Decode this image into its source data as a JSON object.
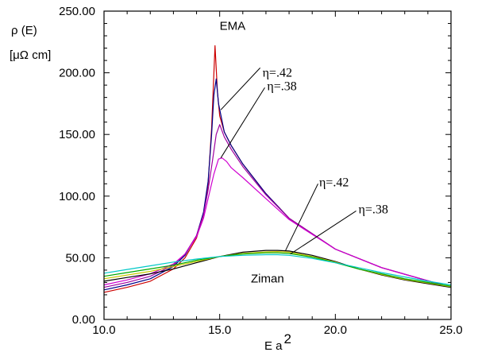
{
  "chart_data": {
    "type": "line",
    "title": "",
    "ylabel": {
      "line1": "ρ (E)",
      "line2": "[μΩ cm]"
    },
    "xlabel": {
      "base": "E a",
      "sup": "2"
    },
    "xlim": [
      10.0,
      25.0
    ],
    "ylim": [
      0.0,
      250.0
    ],
    "xticks": [
      10.0,
      15.0,
      20.0,
      25.0
    ],
    "xtick_labels": [
      "10.0",
      "15.0",
      "20.0",
      "25.0"
    ],
    "yticks": [
      0,
      50,
      100,
      150,
      200,
      250
    ],
    "ytick_labels": [
      "0.00",
      "50.00",
      "100.00",
      "150.00",
      "200.00",
      "250.00"
    ],
    "grid": false,
    "legend": "none",
    "annotations": [
      {
        "id": "ema",
        "text": "EMA",
        "style": "sans",
        "x": 15.0,
        "y": 235
      },
      {
        "id": "ziman",
        "text": "Ziman",
        "style": "sans",
        "x": 16.35,
        "y": 30
      },
      {
        "id": "ema-eta-42",
        "text": "η=.42",
        "style": "serif",
        "x": 16.85,
        "y": 197,
        "line_from": [
          16.75,
          204
        ],
        "line_to": [
          15.05,
          170
        ]
      },
      {
        "id": "ema-eta-38",
        "text": "η=.38",
        "style": "serif",
        "x": 17.05,
        "y": 186,
        "line_from": [
          16.95,
          188
        ],
        "line_to": [
          15.05,
          131
        ]
      },
      {
        "id": "ziman-eta-42",
        "text": "η=.42",
        "style": "serif",
        "x": 19.3,
        "y": 108,
        "line_from": [
          19.25,
          110
        ],
        "line_to": [
          17.85,
          56
        ]
      },
      {
        "id": "ziman-eta-38",
        "text": "η=.38",
        "style": "serif",
        "x": 21.0,
        "y": 86,
        "line_from": [
          20.9,
          88
        ],
        "line_to": [
          18.05,
          53
        ]
      }
    ],
    "series": [
      {
        "color": "#cc0000",
        "x": [
          10.0,
          11.0,
          12.0,
          13.0,
          13.5,
          14.0,
          14.3,
          14.5,
          14.65,
          14.75,
          14.8,
          14.9,
          15.0,
          15.2,
          15.5,
          16.0,
          17.0,
          18.0,
          20.0,
          22.0,
          25.0
        ],
        "y": [
          22,
          26,
          31,
          41,
          50,
          66,
          85,
          110,
          155,
          200,
          222,
          185,
          165,
          152,
          141,
          126,
          102,
          82,
          57,
          42,
          26
        ]
      },
      {
        "color": "#00008b",
        "x": [
          10.0,
          11.0,
          12.0,
          13.0,
          13.5,
          14.0,
          14.3,
          14.5,
          14.65,
          14.75,
          14.85,
          14.95,
          15.2,
          15.5,
          16.0,
          17.0,
          18.0,
          20.0,
          22.0,
          25.0
        ],
        "y": [
          24,
          28,
          33,
          43,
          52,
          68,
          87,
          112,
          150,
          182,
          195,
          175,
          152,
          141,
          126,
          102,
          82,
          57,
          42,
          26
        ]
      },
      {
        "color": "#a000a0",
        "x": [
          10.0,
          11.0,
          12.0,
          13.0,
          13.5,
          14.0,
          14.3,
          14.5,
          14.7,
          14.85,
          15.0,
          15.2,
          15.5,
          16.0,
          17.0,
          18.0,
          20.0,
          22.0,
          25.0
        ],
        "y": [
          26,
          30,
          35,
          44,
          53,
          68,
          85,
          105,
          130,
          150,
          158,
          148,
          138,
          124,
          101,
          82,
          57,
          42,
          26
        ]
      },
      {
        "color": "#d000d0",
        "x": [
          10.0,
          11.0,
          12.0,
          13.0,
          13.5,
          14.0,
          14.3,
          14.5,
          14.75,
          14.95,
          15.1,
          15.3,
          15.5,
          16.0,
          17.0,
          18.0,
          20.0,
          22.0,
          25.0
        ],
        "y": [
          28,
          32,
          37,
          45,
          53,
          67,
          82,
          98,
          118,
          130,
          131,
          128,
          123,
          115,
          98,
          81,
          57,
          42,
          26
        ]
      },
      {
        "color": "#000000",
        "x": [
          10.0,
          11.0,
          12.0,
          13.0,
          14.0,
          15.0,
          16.0,
          17.0,
          17.5,
          18.0,
          19.0,
          20.0,
          21.0,
          22.0,
          23.0,
          24.0,
          25.0
        ],
        "y": [
          31,
          34,
          37,
          41,
          46,
          51,
          54.5,
          56,
          56,
          55.5,
          52,
          47,
          41,
          36,
          32,
          29,
          26
        ]
      },
      {
        "color": "#c8c800",
        "x": [
          10.0,
          11.0,
          12.0,
          13.0,
          14.0,
          15.0,
          16.0,
          17.0,
          17.5,
          18.0,
          19.0,
          20.0,
          21.0,
          22.0,
          23.0,
          24.0,
          25.0
        ],
        "y": [
          33,
          36,
          39,
          43,
          47,
          51,
          53.5,
          54.8,
          55,
          54.5,
          51,
          46.5,
          41,
          36.5,
          32.5,
          29.5,
          26.5
        ]
      },
      {
        "color": "#00a800",
        "x": [
          10.0,
          11.0,
          12.0,
          13.0,
          14.0,
          15.0,
          16.0,
          17.0,
          17.5,
          18.0,
          19.0,
          20.0,
          21.0,
          22.0,
          23.0,
          24.0,
          25.0
        ],
        "y": [
          35,
          38,
          41,
          44,
          48,
          51,
          53,
          54,
          54,
          53.5,
          50.5,
          46,
          41,
          37,
          33,
          30,
          27
        ]
      },
      {
        "color": "#00c8c8",
        "x": [
          10.0,
          11.0,
          12.0,
          13.0,
          14.0,
          15.0,
          16.0,
          17.0,
          17.5,
          18.0,
          19.0,
          20.0,
          21.0,
          22.0,
          23.0,
          24.0,
          25.0
        ],
        "y": [
          37.5,
          40.5,
          43.5,
          46.5,
          49,
          51,
          52,
          52.5,
          52.5,
          52,
          49.5,
          46,
          42,
          38,
          34.5,
          31,
          28
        ]
      }
    ]
  }
}
